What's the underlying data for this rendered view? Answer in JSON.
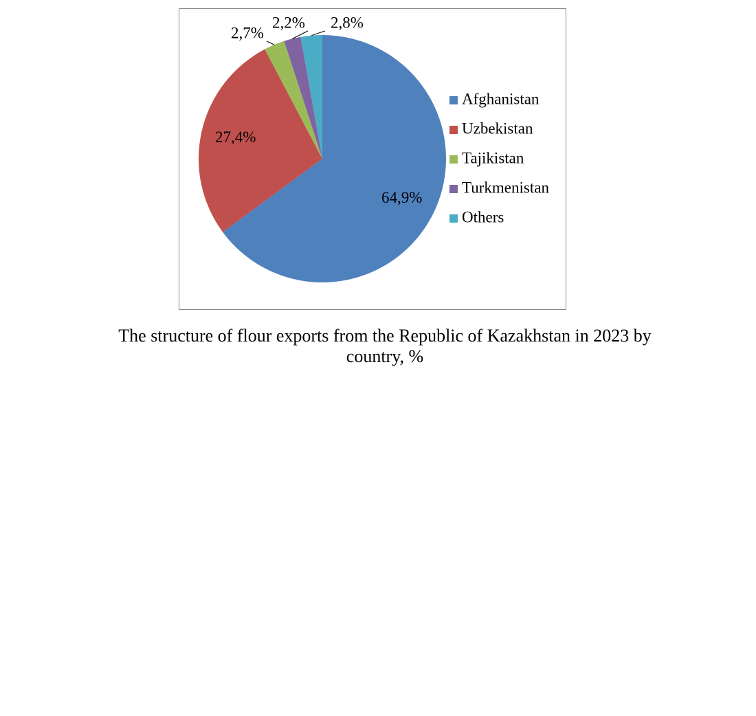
{
  "chart_data": {
    "type": "pie",
    "title": "The structure of flour exports from the Republic of Kazakhstan in 2023 by country, %",
    "categories": [
      "Afghanistan",
      "Uzbekistan",
      "Tajikistan",
      "Turkmenistan",
      "Others"
    ],
    "values": [
      64.9,
      27.4,
      2.7,
      2.2,
      2.8
    ],
    "value_labels": [
      "64,9%",
      "27,4%",
      "2,7%",
      "2,2%",
      "2,8%"
    ],
    "colors": [
      "#4f81bd",
      "#c0504d",
      "#9bbb59",
      "#8064a2",
      "#4bacc6"
    ],
    "legend": "right"
  }
}
